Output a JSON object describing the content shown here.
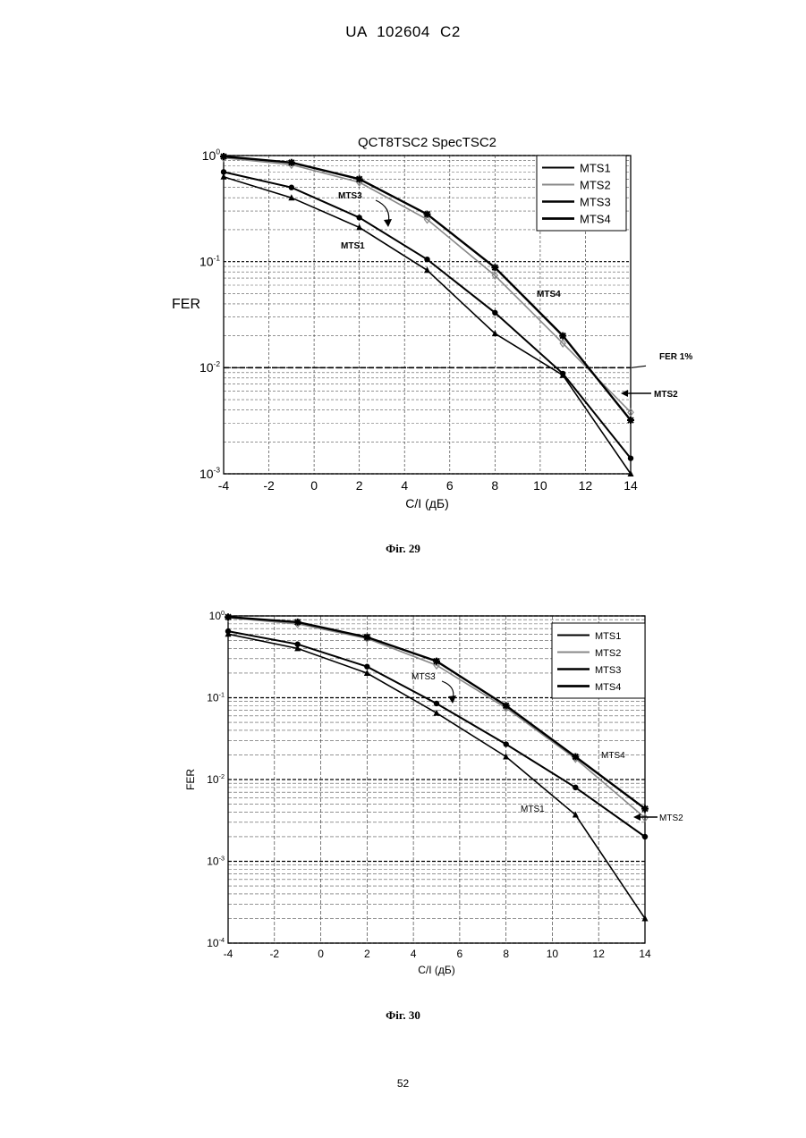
{
  "header": {
    "text": "UA   102604   C2"
  },
  "page_number": "52",
  "figures": [
    {
      "caption": "Фіг. 29"
    },
    {
      "caption": "Фіг. 30"
    }
  ],
  "chart_data": [
    {
      "type": "line",
      "title": "QCT8TSC2 SpecTSC2",
      "xlabel": "C/I (дБ)",
      "ylabel": "FER",
      "yscale": "log",
      "xlim": [
        -4,
        14
      ],
      "ylim": [
        0.001,
        1
      ],
      "x_ticks": [
        "-4",
        "-2",
        "0",
        "2",
        "4",
        "6",
        "8",
        "10",
        "12",
        "14"
      ],
      "y_ticks": [
        "10^0",
        "10^-1",
        "10^-2",
        "10^-3"
      ],
      "grid": true,
      "legend_position": "top-right",
      "series": [
        {
          "name": "MTS1",
          "color": "#000000",
          "x": [
            -4,
            -1,
            2,
            5,
            8,
            11,
            14
          ],
          "y": [
            0.63,
            0.4,
            0.21,
            0.083,
            0.021,
            0.0085,
            0.001
          ]
        },
        {
          "name": "MTS2",
          "color": "#888888",
          "x": [
            -4,
            -1,
            2,
            5,
            8,
            11,
            14
          ],
          "y": [
            0.95,
            0.82,
            0.56,
            0.25,
            0.074,
            0.017,
            0.0038
          ]
        },
        {
          "name": "MTS3",
          "color": "#000000",
          "x": [
            -4,
            -1,
            2,
            5,
            8,
            11,
            14
          ],
          "y": [
            0.7,
            0.5,
            0.26,
            0.105,
            0.033,
            0.0088,
            0.0014
          ]
        },
        {
          "name": "MTS4",
          "color": "#000000",
          "x": [
            -4,
            -1,
            2,
            5,
            8,
            11,
            14
          ],
          "y": [
            0.98,
            0.86,
            0.6,
            0.28,
            0.088,
            0.02,
            0.0032
          ]
        }
      ],
      "annotations": [
        {
          "text": "MTS3"
        },
        {
          "text": "MTS1"
        },
        {
          "text": "MTS4"
        },
        {
          "text": "FER  1%"
        },
        {
          "text": "MTS2"
        }
      ]
    },
    {
      "type": "line",
      "title": "",
      "xlabel": "C/I (дБ)",
      "ylabel": "FER",
      "yscale": "log",
      "xlim": [
        -4,
        14
      ],
      "ylim": [
        0.0001,
        1
      ],
      "x_ticks": [
        "-4",
        "-2",
        "0",
        "2",
        "4",
        "6",
        "8",
        "10",
        "12",
        "14"
      ],
      "y_ticks": [
        "10^0",
        "10^-1",
        "10^-2",
        "10^-3",
        "10^-4"
      ],
      "grid": true,
      "legend_position": "top-right",
      "series": [
        {
          "name": "MTS1",
          "color": "#000000",
          "x": [
            -4,
            -1,
            2,
            5,
            8,
            11,
            14
          ],
          "y": [
            0.6,
            0.4,
            0.2,
            0.065,
            0.019,
            0.0037,
            0.0002
          ]
        },
        {
          "name": "MTS2",
          "color": "#888888",
          "x": [
            -4,
            -1,
            2,
            5,
            8,
            11,
            14
          ],
          "y": [
            0.95,
            0.8,
            0.53,
            0.25,
            0.075,
            0.018,
            0.0034
          ]
        },
        {
          "name": "MTS3",
          "color": "#000000",
          "x": [
            -4,
            -1,
            2,
            5,
            8,
            11,
            14
          ],
          "y": [
            0.65,
            0.45,
            0.24,
            0.085,
            0.027,
            0.008,
            0.002
          ]
        },
        {
          "name": "MTS4",
          "color": "#000000",
          "x": [
            -4,
            -1,
            2,
            5,
            8,
            11,
            14
          ],
          "y": [
            0.97,
            0.84,
            0.55,
            0.28,
            0.08,
            0.019,
            0.0044
          ]
        }
      ],
      "annotations": [
        {
          "text": "MTS3"
        },
        {
          "text": "MTS4"
        },
        {
          "text": "MTS1"
        },
        {
          "text": "MTS2"
        }
      ]
    }
  ]
}
